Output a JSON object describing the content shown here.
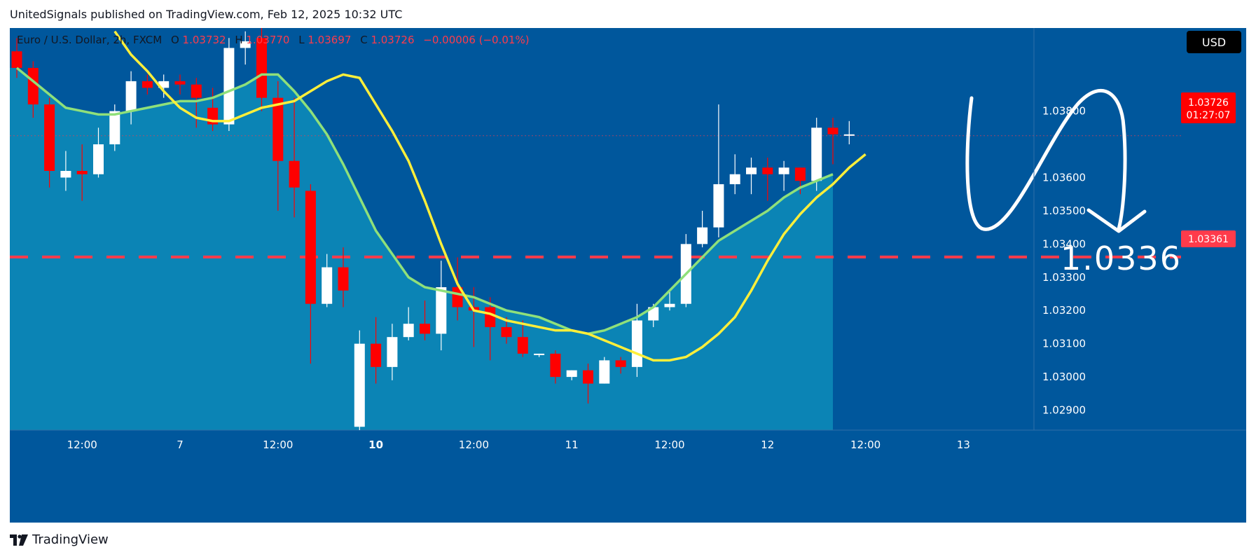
{
  "header": {
    "text": "UnitedSignals published on TradingView.com, Feb 12, 2025 10:32 UTC"
  },
  "footer": {
    "brand": "TradingView",
    "logo_icon": "tradingview-logo-icon"
  },
  "legend": {
    "symbol": "Euro / U.S. Dollar, 2h, FXCM",
    "o_label": "O",
    "o_value": "1.03732",
    "h_label": "H",
    "h_value": "1.03770",
    "l_label": "L",
    "l_value": "1.03697",
    "c_label": "C",
    "c_value": "1.03726",
    "change": "−0.00006 (−0.01%)"
  },
  "currency_button": "USD",
  "price_label": {
    "price": "1.03726",
    "countdown": "01:27:07"
  },
  "level_label": "1.03361",
  "annotation": {
    "text": "1.0336"
  },
  "colors": {
    "background": "#00579c",
    "band_fill": "#0c8ab8",
    "up_candle": "#ffffff",
    "down_candle": "#ff0000",
    "ema_fast": "#ffef3a",
    "ema_slow": "#8fe07a",
    "level_line": "#ff3b4b",
    "axis_bg": "#00579c"
  },
  "chart_data": {
    "type": "candlestick",
    "symbol": "Euro / U.S. Dollar",
    "timeframe": "2h",
    "yaxis_ticks": [
      1.029,
      1.03,
      1.031,
      1.032,
      1.033,
      1.034,
      1.035,
      1.036,
      1.038
    ],
    "yaxis_tick_labels": [
      "1.02900",
      "1.03000",
      "1.03100",
      "1.03200",
      "1.03300",
      "1.03400",
      "1.03500",
      "1.03600",
      "1.03800"
    ],
    "xaxis_ticks": [
      {
        "label": "12:00",
        "bar": 4
      },
      {
        "label": "7",
        "bar": 10
      },
      {
        "label": "12:00",
        "bar": 16
      },
      {
        "label": "10",
        "bar": 22
      },
      {
        "label": "12:00",
        "bar": 28
      },
      {
        "label": "11",
        "bar": 34
      },
      {
        "label": "12:00",
        "bar": 40
      },
      {
        "label": "12",
        "bar": 46
      },
      {
        "label": "12:00",
        "bar": 52
      },
      {
        "label": "13",
        "bar": 58
      }
    ],
    "candles": [
      {
        "o": 1.0398,
        "h": 1.0402,
        "l": 1.039,
        "c": 1.0393
      },
      {
        "o": 1.0393,
        "h": 1.0395,
        "l": 1.0378,
        "c": 1.0382
      },
      {
        "o": 1.0382,
        "h": 1.0384,
        "l": 1.0357,
        "c": 1.0362
      },
      {
        "o": 1.036,
        "h": 1.0368,
        "l": 1.0356,
        "c": 1.0362
      },
      {
        "o": 1.0362,
        "h": 1.037,
        "l": 1.0353,
        "c": 1.0361
      },
      {
        "o": 1.0361,
        "h": 1.0375,
        "l": 1.036,
        "c": 1.037
      },
      {
        "o": 1.037,
        "h": 1.0382,
        "l": 1.0368,
        "c": 1.038
      },
      {
        "o": 1.038,
        "h": 1.0392,
        "l": 1.0376,
        "c": 1.0389
      },
      {
        "o": 1.0389,
        "h": 1.0391,
        "l": 1.0385,
        "c": 1.0387
      },
      {
        "o": 1.0387,
        "h": 1.0391,
        "l": 1.0384,
        "c": 1.0389
      },
      {
        "o": 1.0389,
        "h": 1.0391,
        "l": 1.0385,
        "c": 1.0388
      },
      {
        "o": 1.0388,
        "h": 1.039,
        "l": 1.0375,
        "c": 1.0384
      },
      {
        "o": 1.0381,
        "h": 1.0387,
        "l": 1.0374,
        "c": 1.0376
      },
      {
        "o": 1.0376,
        "h": 1.0402,
        "l": 1.0374,
        "c": 1.0399
      },
      {
        "o": 1.0399,
        "h": 1.0404,
        "l": 1.0394,
        "c": 1.0401
      },
      {
        "o": 1.0402,
        "h": 1.0405,
        "l": 1.038,
        "c": 1.0384
      },
      {
        "o": 1.0384,
        "h": 1.0389,
        "l": 1.035,
        "c": 1.0365
      },
      {
        "o": 1.0365,
        "h": 1.0384,
        "l": 1.0348,
        "c": 1.0357
      },
      {
        "o": 1.0356,
        "h": 1.0358,
        "l": 1.0304,
        "c": 1.0322
      },
      {
        "o": 1.0322,
        "h": 1.0337,
        "l": 1.0321,
        "c": 1.0333
      },
      {
        "o": 1.0333,
        "h": 1.0339,
        "l": 1.0321,
        "c": 1.0326
      },
      {
        "o": 1.0285,
        "h": 1.0314,
        "l": 1.0284,
        "c": 1.031
      },
      {
        "o": 1.031,
        "h": 1.0318,
        "l": 1.0298,
        "c": 1.0303
      },
      {
        "o": 1.0303,
        "h": 1.0316,
        "l": 1.0299,
        "c": 1.0312
      },
      {
        "o": 1.0312,
        "h": 1.0321,
        "l": 1.0311,
        "c": 1.0316
      },
      {
        "o": 1.0316,
        "h": 1.0323,
        "l": 1.0311,
        "c": 1.0313
      },
      {
        "o": 1.0313,
        "h": 1.0335,
        "l": 1.0308,
        "c": 1.0327
      },
      {
        "o": 1.0327,
        "h": 1.0336,
        "l": 1.0317,
        "c": 1.0321
      },
      {
        "o": 1.0321,
        "h": 1.0327,
        "l": 1.0309,
        "c": 1.032
      },
      {
        "o": 1.0321,
        "h": 1.0324,
        "l": 1.0305,
        "c": 1.0315
      },
      {
        "o": 1.0315,
        "h": 1.0318,
        "l": 1.031,
        "c": 1.0312
      },
      {
        "o": 1.0312,
        "h": 1.0317,
        "l": 1.0306,
        "c": 1.0307
      },
      {
        "o": 1.0307,
        "h": 1.0307,
        "l": 1.0306,
        "c": 1.0307
      },
      {
        "o": 1.0307,
        "h": 1.0308,
        "l": 1.0298,
        "c": 1.03
      },
      {
        "o": 1.03,
        "h": 1.0302,
        "l": 1.0299,
        "c": 1.0302
      },
      {
        "o": 1.0302,
        "h": 1.0304,
        "l": 1.0292,
        "c": 1.0298
      },
      {
        "o": 1.0298,
        "h": 1.0306,
        "l": 1.0298,
        "c": 1.0305
      },
      {
        "o": 1.0305,
        "h": 1.0306,
        "l": 1.0301,
        "c": 1.0303
      },
      {
        "o": 1.0303,
        "h": 1.0322,
        "l": 1.03,
        "c": 1.0317
      },
      {
        "o": 1.0317,
        "h": 1.0322,
        "l": 1.0315,
        "c": 1.0321
      },
      {
        "o": 1.0321,
        "h": 1.0326,
        "l": 1.032,
        "c": 1.0322
      },
      {
        "o": 1.0322,
        "h": 1.0343,
        "l": 1.0321,
        "c": 1.034
      },
      {
        "o": 1.034,
        "h": 1.035,
        "l": 1.0339,
        "c": 1.0345
      },
      {
        "o": 1.0345,
        "h": 1.0382,
        "l": 1.0342,
        "c": 1.0358
      },
      {
        "o": 1.0358,
        "h": 1.0367,
        "l": 1.0355,
        "c": 1.0361
      },
      {
        "o": 1.0361,
        "h": 1.0366,
        "l": 1.0355,
        "c": 1.0363
      },
      {
        "o": 1.0363,
        "h": 1.0366,
        "l": 1.0353,
        "c": 1.0361
      },
      {
        "o": 1.0361,
        "h": 1.0365,
        "l": 1.0356,
        "c": 1.0363
      },
      {
        "o": 1.0363,
        "h": 1.0363,
        "l": 1.0355,
        "c": 1.0359
      },
      {
        "o": 1.0359,
        "h": 1.0378,
        "l": 1.0356,
        "c": 1.0375
      },
      {
        "o": 1.0375,
        "h": 1.0378,
        "l": 1.0364,
        "c": 1.0373
      },
      {
        "o": 1.0373,
        "h": 1.0377,
        "l": 1.037,
        "c": 1.0373
      }
    ],
    "ema_fast": [
      1.0404,
      1.0397,
      1.0392,
      1.0386,
      1.0381,
      1.0378,
      1.0377,
      1.0377,
      1.0379,
      1.0381,
      1.0382,
      1.0383,
      1.0386,
      1.0389,
      1.0391,
      1.039,
      1.0382,
      1.0374,
      1.0365,
      1.0353,
      1.034,
      1.0328,
      1.032,
      1.0319,
      1.0317,
      1.0316,
      1.0315,
      1.0314,
      1.0314,
      1.0313,
      1.0311,
      1.0309,
      1.0307,
      1.0305,
      1.0305,
      1.0306,
      1.0309,
      1.0313,
      1.0318,
      1.0326,
      1.0335,
      1.0343,
      1.0349,
      1.0354,
      1.0358,
      1.0363,
      1.0367
    ],
    "ema_fast_start_bar": 6,
    "ema_slow": [
      1.0393,
      1.0389,
      1.0385,
      1.0381,
      1.038,
      1.0379,
      1.0379,
      1.038,
      1.0381,
      1.0382,
      1.0383,
      1.0383,
      1.0384,
      1.0386,
      1.0388,
      1.0391,
      1.0391,
      1.0386,
      1.038,
      1.0373,
      1.0364,
      1.0354,
      1.0344,
      1.0337,
      1.033,
      1.0327,
      1.0326,
      1.0325,
      1.0324,
      1.0322,
      1.032,
      1.0319,
      1.0318,
      1.0316,
      1.0314,
      1.0313,
      1.0314,
      1.0316,
      1.0318,
      1.0321,
      1.0326,
      1.0331,
      1.0336,
      1.0341,
      1.0344,
      1.0347,
      1.035,
      1.0354,
      1.0357,
      1.0359,
      1.0361
    ],
    "level": 1.03361,
    "last_price": 1.03726,
    "ylim": [
      1.0284,
      1.0405
    ],
    "grid": false
  }
}
